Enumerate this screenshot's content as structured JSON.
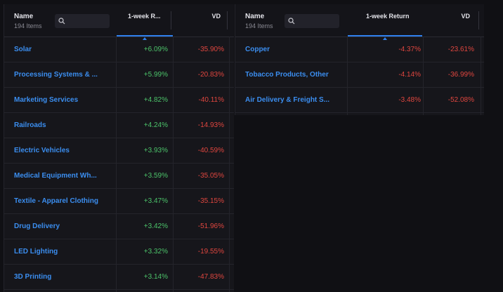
{
  "colors": {
    "positive": "#4cc36a",
    "negative": "#e0463f",
    "link": "#3b8ef0",
    "accent": "#2f80ed"
  },
  "left_table": {
    "header": {
      "name_label": "Name",
      "count": "194 Items",
      "return_label": "1-week R...",
      "vd_label": "VD"
    },
    "rows": [
      {
        "name": "Solar",
        "return": "+6.09%",
        "vd": "-35.90%"
      },
      {
        "name": "Processing Systems & ...",
        "return": "+5.99%",
        "vd": "-20.83%"
      },
      {
        "name": "Marketing Services",
        "return": "+4.82%",
        "vd": "-40.11%"
      },
      {
        "name": "Railroads",
        "return": "+4.24%",
        "vd": "-14.93%"
      },
      {
        "name": "Electric Vehicles",
        "return": "+3.93%",
        "vd": "-40.59%"
      },
      {
        "name": "Medical Equipment Wh...",
        "return": "+3.59%",
        "vd": "-35.05%"
      },
      {
        "name": "Textile - Apparel Clothing",
        "return": "+3.47%",
        "vd": "-35.15%"
      },
      {
        "name": "Drug Delivery",
        "return": "+3.42%",
        "vd": "-51.96%"
      },
      {
        "name": "LED Lighting",
        "return": "+3.32%",
        "vd": "-19.55%"
      },
      {
        "name": "3D Printing",
        "return": "+3.14%",
        "vd": "-47.83%"
      }
    ]
  },
  "right_table": {
    "header": {
      "name_label": "Name",
      "count": "194 Items",
      "return_label": "1-week Return",
      "vd_label": "VD"
    },
    "rows": [
      {
        "name": "Copper",
        "return": "-4.37%",
        "vd": "-23.61%"
      },
      {
        "name": "Tobacco Products, Other",
        "return": "-4.14%",
        "vd": "-36.99%"
      },
      {
        "name": "Air Delivery & Freight S...",
        "return": "-3.48%",
        "vd": "-52.08%"
      }
    ]
  }
}
